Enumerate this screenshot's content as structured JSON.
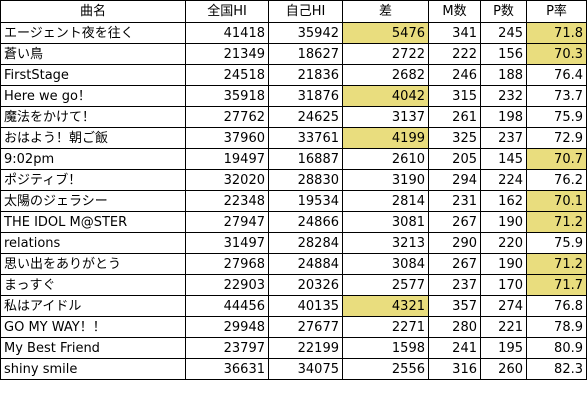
{
  "headers": [
    "曲名",
    "全国HI",
    "自己HI",
    "差",
    "M数",
    "P数",
    "P率"
  ],
  "highlight_color": "#e9dd7e",
  "rows": [
    {
      "name": "エージェント夜を往く",
      "national": "41418",
      "self": "35942",
      "diff": "5476",
      "m": "341",
      "p": "245",
      "rate": "71.8",
      "hl_diff": true,
      "hl_rate": true
    },
    {
      "name": "蒼い鳥",
      "national": "21349",
      "self": "18627",
      "diff": "2722",
      "m": "222",
      "p": "156",
      "rate": "70.3",
      "hl_diff": false,
      "hl_rate": true
    },
    {
      "name": "FirstStage",
      "national": "24518",
      "self": "21836",
      "diff": "2682",
      "m": "246",
      "p": "188",
      "rate": "76.4",
      "hl_diff": false,
      "hl_rate": false
    },
    {
      "name": "Here we go！",
      "national": "35918",
      "self": "31876",
      "diff": "4042",
      "m": "315",
      "p": "232",
      "rate": "73.7",
      "hl_diff": true,
      "hl_rate": false
    },
    {
      "name": "魔法をかけて！",
      "national": "27762",
      "self": "24625",
      "diff": "3137",
      "m": "261",
      "p": "198",
      "rate": "75.9",
      "hl_diff": false,
      "hl_rate": false
    },
    {
      "name": "おはよう！朝ご飯",
      "national": "37960",
      "self": "33761",
      "diff": "4199",
      "m": "325",
      "p": "237",
      "rate": "72.9",
      "hl_diff": true,
      "hl_rate": false
    },
    {
      "name": "9:02pm",
      "national": "19497",
      "self": "16887",
      "diff": "2610",
      "m": "205",
      "p": "145",
      "rate": "70.7",
      "hl_diff": false,
      "hl_rate": true
    },
    {
      "name": "ポジティブ！",
      "national": "32020",
      "self": "28830",
      "diff": "3190",
      "m": "294",
      "p": "224",
      "rate": "76.2",
      "hl_diff": false,
      "hl_rate": false
    },
    {
      "name": "太陽のジェラシー",
      "national": "22348",
      "self": "19534",
      "diff": "2814",
      "m": "231",
      "p": "162",
      "rate": "70.1",
      "hl_diff": false,
      "hl_rate": true
    },
    {
      "name": "THE IDOL M@STER",
      "national": "27947",
      "self": "24866",
      "diff": "3081",
      "m": "267",
      "p": "190",
      "rate": "71.2",
      "hl_diff": false,
      "hl_rate": true
    },
    {
      "name": "relations",
      "national": "31497",
      "self": "28284",
      "diff": "3213",
      "m": "290",
      "p": "220",
      "rate": "75.9",
      "hl_diff": false,
      "hl_rate": false
    },
    {
      "name": "思い出をありがとう",
      "national": "27968",
      "self": "24884",
      "diff": "3084",
      "m": "267",
      "p": "190",
      "rate": "71.2",
      "hl_diff": false,
      "hl_rate": true
    },
    {
      "name": "まっすぐ",
      "national": "22903",
      "self": "20326",
      "diff": "2577",
      "m": "237",
      "p": "170",
      "rate": "71.7",
      "hl_diff": false,
      "hl_rate": true
    },
    {
      "name": "私はアイドル",
      "national": "44456",
      "self": "40135",
      "diff": "4321",
      "m": "357",
      "p": "274",
      "rate": "76.8",
      "hl_diff": true,
      "hl_rate": false
    },
    {
      "name": "GO MY WAY！！",
      "national": "29948",
      "self": "27677",
      "diff": "2271",
      "m": "280",
      "p": "221",
      "rate": "78.9",
      "hl_diff": false,
      "hl_rate": false
    },
    {
      "name": "My Best Friend",
      "national": "23797",
      "self": "22199",
      "diff": "1598",
      "m": "241",
      "p": "195",
      "rate": "80.9",
      "hl_diff": false,
      "hl_rate": false
    },
    {
      "name": "shiny smile",
      "national": "36631",
      "self": "34075",
      "diff": "2556",
      "m": "316",
      "p": "260",
      "rate": "82.3",
      "hl_diff": false,
      "hl_rate": false
    }
  ]
}
